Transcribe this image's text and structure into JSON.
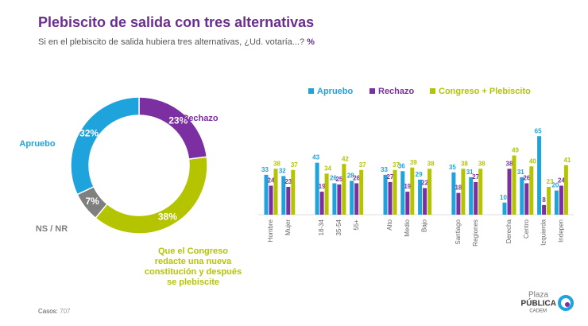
{
  "header": {
    "title": "Plebiscito de salida con tres alternativas",
    "subtitle": "Si en el plebiscito de salida hubiera tres alternativas, ¿Ud. votaría...?",
    "subtitle_unit": "%"
  },
  "chart_data": [
    {
      "type": "donut",
      "categories": [
        "Rechazo",
        "Que el Congreso redacte una nueva constitución y después se plebiscite",
        "NS / NR",
        "Apruebo"
      ],
      "values": [
        23,
        38,
        7,
        32
      ],
      "value_labels": [
        "23%",
        "38%",
        "7%",
        "32%"
      ],
      "colors": [
        "#7b2fa0",
        "#b5c400",
        "#7f7f7f",
        "#1fa3dc"
      ]
    },
    {
      "type": "bar",
      "categories": [
        "Hombre",
        "Mujer",
        "18-34",
        "35-54",
        "55+",
        "Alto",
        "Medio",
        "Bajo",
        "Santiago",
        "Regiones",
        "Derecha",
        "Centro",
        "Izquierda",
        "Indepen"
      ],
      "series": [
        {
          "name": "Apruebo",
          "color": "#1fa3dc",
          "values": [
            33,
            32,
            43,
            26,
            28,
            33,
            36,
            29,
            35,
            31,
            10,
            31,
            65,
            20
          ]
        },
        {
          "name": "Rechazo",
          "color": "#7b2fa0",
          "values": [
            24,
            23,
            19,
            25,
            26,
            27,
            19,
            22,
            18,
            27,
            38,
            26,
            8,
            24
          ]
        },
        {
          "name": "Congreso + Plebiscito",
          "color": "#b5c400",
          "values": [
            38,
            37,
            34,
            42,
            37,
            37,
            39,
            38,
            38,
            38,
            49,
            40,
            23,
            41
          ]
        }
      ]
    }
  ],
  "footer": {
    "cases_label": "Casos:",
    "cases": 707
  },
  "logo": {
    "line1": "Plaza",
    "line2": "PÚBLICA",
    "line3": "CADEM"
  }
}
